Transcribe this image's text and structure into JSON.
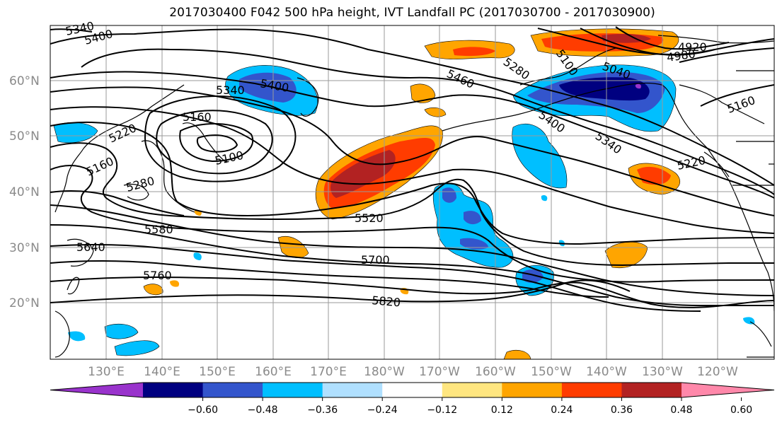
{
  "title": "2017030400 F042 500 hPa height, IVT Landfall PC (2017030700 - 2017030900)",
  "map": {
    "lat_labels": [
      "60°N",
      "50°N",
      "40°N",
      "30°N",
      "20°N"
    ],
    "lon_labels": [
      "130°E",
      "140°E",
      "150°E",
      "160°E",
      "170°E",
      "180°W",
      "170°W",
      "160°W",
      "150°W",
      "140°W",
      "130°W",
      "120°W"
    ]
  },
  "contours": {
    "labels": [
      "5340",
      "5400",
      "5340",
      "5400",
      "5160",
      "5220",
      "5160",
      "5100",
      "5280",
      "5580",
      "5640",
      "5760",
      "5460",
      "5280",
      "5100",
      "5040",
      "4920",
      "4980",
      "5160",
      "5400",
      "5340",
      "5220",
      "5520",
      "5700",
      "5820"
    ]
  },
  "colorbar": {
    "colors": [
      "#9933cc",
      "#000080",
      "#3355cc",
      "#00bfff",
      "#b0e0ff",
      "#ffffff",
      "#ffe680",
      "#ffa500",
      "#ff3c00",
      "#b22222",
      "#ff88aa"
    ],
    "ticks": [
      "−0.60",
      "−0.48",
      "−0.36",
      "−0.24",
      "−0.12",
      "0.12",
      "0.24",
      "0.36",
      "0.48",
      "0.60"
    ]
  }
}
